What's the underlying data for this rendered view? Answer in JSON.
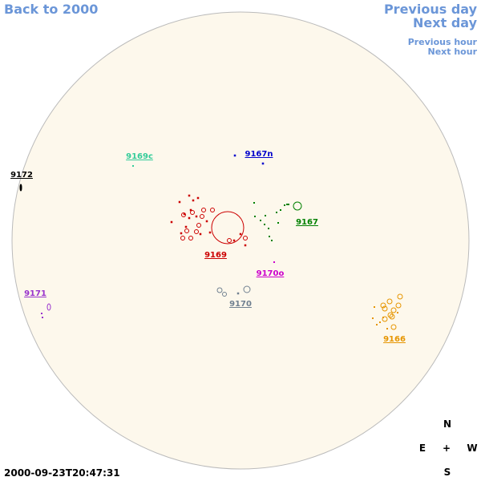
{
  "nav": {
    "back": "Back to 2000",
    "previous_day": "Previous day",
    "next_day": "Next day",
    "previous_hour": "Previous hour",
    "next_hour": "Next hour"
  },
  "regions": [
    {
      "label": "9169c",
      "color": "#33cc99"
    },
    {
      "label": "9167n",
      "color": "#0000cc"
    },
    {
      "label": "9172",
      "color": "#000000"
    },
    {
      "label": "9167",
      "color": "#008000"
    },
    {
      "label": "9169",
      "color": "#cc0000"
    },
    {
      "label": "9170o",
      "color": "#cc00cc"
    },
    {
      "label": "9171",
      "color": "#9933cc"
    },
    {
      "label": "9170",
      "color": "#708090"
    },
    {
      "label": "9166",
      "color": "#e69500"
    }
  ],
  "compass": {
    "north": "N",
    "east": "E",
    "center": "+",
    "west": "W",
    "south": "S"
  },
  "timestamp": "2000-09-23T20:47:31"
}
